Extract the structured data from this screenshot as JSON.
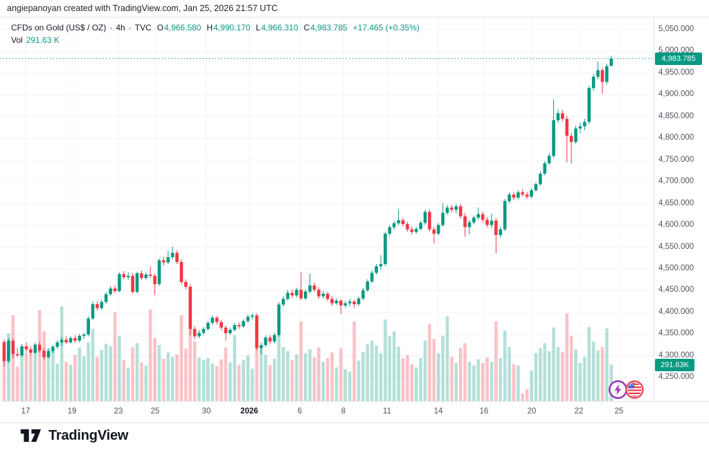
{
  "attribution": "angiepanoyan created with TradingView.com, Jan 25, 2026 21:57 UTC",
  "legend": {
    "symbol": "CFDs on Gold (US$ / OZ)",
    "separator": "·",
    "interval": "4h",
    "exchange": "TVC",
    "o_label": "O",
    "h_label": "H",
    "l_label": "L",
    "c_label": "C",
    "ohlc": {
      "o": "4,966.580",
      "h": "4,990.170",
      "l": "4,966.310",
      "c": "4,983.785"
    },
    "change": "+17.465 (+0.35%)",
    "vol_label": "Vol",
    "vol_value": "291.63 K"
  },
  "price_axis": {
    "labels": [
      "5,050.000",
      "5,000.000",
      "4,950.000",
      "4,900.000",
      "4,850.000",
      "4,800.000",
      "4,750.000",
      "4,700.000",
      "4,650.000",
      "4,600.000",
      "4,550.000",
      "4,500.000",
      "4,450.000",
      "4,400.000",
      "4,350.000",
      "4,300.000",
      "4,250.000"
    ],
    "prices": [
      5050,
      5000,
      4950,
      4900,
      4850,
      4800,
      4750,
      4700,
      4650,
      4600,
      4550,
      4500,
      4450,
      4400,
      4350,
      4300,
      4250
    ],
    "current_price_label": "4,983.785",
    "volume_badge_label": "291.63K"
  },
  "time_axis": {
    "ticks": [
      {
        "label": "17",
        "x": 37,
        "bold": false
      },
      {
        "label": "19",
        "x": 104,
        "bold": false
      },
      {
        "label": "23",
        "x": 171,
        "bold": false
      },
      {
        "label": "25",
        "x": 224,
        "bold": false
      },
      {
        "label": "30",
        "x": 298,
        "bold": false
      },
      {
        "label": "2026",
        "x": 360,
        "bold": true
      },
      {
        "label": "6",
        "x": 433,
        "bold": false
      },
      {
        "label": "8",
        "x": 496,
        "bold": false
      },
      {
        "label": "11",
        "x": 559,
        "bold": false
      },
      {
        "label": "14",
        "x": 633,
        "bold": false
      },
      {
        "label": "16",
        "x": 699,
        "bold": false
      },
      {
        "label": "20",
        "x": 768,
        "bold": false
      },
      {
        "label": "22",
        "x": 836,
        "bold": false
      },
      {
        "label": "25",
        "x": 894,
        "bold": false
      }
    ]
  },
  "icons": {
    "lightning": "flash-boost",
    "flag": "us-market-flag"
  },
  "footer": {
    "brand": "TradingView"
  },
  "colors": {
    "up": "#089981",
    "down": "#f23645",
    "vol_up": "rgba(8,153,129,0.30)",
    "vol_down": "rgba(242,54,69,0.30)",
    "grid": "#f0f3fa",
    "frame": "#e0e3eb",
    "axis_text": "#50535e",
    "dark_text": "#131722",
    "accent": "#089981",
    "icon_purple": "#9a36bc",
    "icon_red": "#f0475a",
    "flag_blue": "#3f51b5"
  },
  "chart_data": {
    "type": "candlestick+volume",
    "title": "CFDs on Gold (US$ / OZ) · 4h · TVC",
    "interval": "4h",
    "exchange": "TVC",
    "last_ohlc": {
      "open": 4966.58,
      "high": 4990.17,
      "low": 4966.31,
      "close": 4983.785,
      "change": 17.465,
      "change_pct": 0.35
    },
    "last_volume_k": 291.63,
    "ylim": [
      4200,
      5075
    ],
    "grid_step": 50,
    "grid_range": [
      4250,
      5050
    ],
    "legend_position": "top-left",
    "volume_unit": "K",
    "time_span_labels": [
      "17",
      "19",
      "23",
      "25",
      "30",
      "2026",
      "6",
      "8",
      "11",
      "14",
      "16",
      "20",
      "22",
      "25"
    ],
    "candles": [
      [
        4332,
        4338,
        4276,
        4288,
        390
      ],
      [
        4288,
        4341,
        4283,
        4335,
        545
      ],
      [
        4335,
        4340,
        4294,
        4304,
        690
      ],
      [
        4304,
        4318,
        4297,
        4301,
        275
      ],
      [
        4301,
        4327,
        4298,
        4322,
        435
      ],
      [
        4322,
        4331,
        4309,
        4315,
        390
      ],
      [
        4315,
        4322,
        4301,
        4307,
        375
      ],
      [
        4307,
        4331,
        4305,
        4326,
        395
      ],
      [
        4326,
        4333,
        4307,
        4312,
        730
      ],
      [
        4312,
        4318,
        4291,
        4297,
        560
      ],
      [
        4297,
        4316,
        4294,
        4311,
        425
      ],
      [
        4311,
        4325,
        4306,
        4321,
        430
      ],
      [
        4321,
        4336,
        4316,
        4331,
        300
      ],
      [
        4331,
        4343,
        4323,
        4337,
        760
      ],
      [
        4337,
        4345,
        4327,
        4331,
        315
      ],
      [
        4331,
        4346,
        4328,
        4341,
        290
      ],
      [
        4341,
        4348,
        4330,
        4335,
        370
      ],
      [
        4335,
        4351,
        4331,
        4346,
        430
      ],
      [
        4346,
        4353,
        4339,
        4349,
        360
      ],
      [
        4349,
        4391,
        4345,
        4386,
        470
      ],
      [
        4386,
        4425,
        4382,
        4419,
        580
      ],
      [
        4419,
        4426,
        4404,
        4410,
        355
      ],
      [
        4410,
        4429,
        4406,
        4424,
        410
      ],
      [
        4424,
        4447,
        4420,
        4442,
        460
      ],
      [
        4442,
        4460,
        4438,
        4455,
        440
      ],
      [
        4455,
        4462,
        4444,
        4449,
        715
      ],
      [
        4449,
        4492,
        4446,
        4488,
        520
      ],
      [
        4488,
        4495,
        4476,
        4481,
        330
      ],
      [
        4481,
        4492,
        4475,
        4484,
        270
      ],
      [
        4484,
        4490,
        4443,
        4447,
        430
      ],
      [
        4447,
        4494,
        4444,
        4490,
        465
      ],
      [
        4490,
        4496,
        4474,
        4479,
        310
      ],
      [
        4479,
        4492,
        4475,
        4487,
        285
      ],
      [
        4487,
        4506,
        4479,
        4484,
        735
      ],
      [
        4484,
        4489,
        4440,
        4465,
        505
      ],
      [
        4465,
        4524,
        4461,
        4520,
        450
      ],
      [
        4520,
        4528,
        4508,
        4515,
        340
      ],
      [
        4515,
        4541,
        4511,
        4527,
        390
      ],
      [
        4527,
        4551,
        4522,
        4537,
        355
      ],
      [
        4537,
        4543,
        4511,
        4516,
        375
      ],
      [
        4516,
        4522,
        4464,
        4470,
        690
      ],
      [
        4470,
        4476,
        4453,
        4459,
        420
      ],
      [
        4459,
        4464,
        4347,
        4362,
        655
      ],
      [
        4362,
        4368,
        4338,
        4345,
        480
      ],
      [
        4345,
        4359,
        4341,
        4353,
        350
      ],
      [
        4353,
        4367,
        4349,
        4362,
        330
      ],
      [
        4362,
        4381,
        4358,
        4376,
        345
      ],
      [
        4376,
        4393,
        4371,
        4388,
        300
      ],
      [
        4388,
        4392,
        4372,
        4378,
        280
      ],
      [
        4378,
        4383,
        4359,
        4365,
        335
      ],
      [
        4365,
        4370,
        4335,
        4352,
        430
      ],
      [
        4352,
        4365,
        4348,
        4360,
        310
      ],
      [
        4360,
        4376,
        4356,
        4371,
        530
      ],
      [
        4371,
        4377,
        4362,
        4368,
        290
      ],
      [
        4368,
        4385,
        4364,
        4380,
        330
      ],
      [
        4380,
        4395,
        4376,
        4390,
        365
      ],
      [
        4390,
        4397,
        4384,
        4393,
        260
      ],
      [
        4393,
        4398,
        4313,
        4318,
        560
      ],
      [
        4318,
        4331,
        4304,
        4325,
        430
      ],
      [
        4325,
        4347,
        4321,
        4342,
        370
      ],
      [
        4342,
        4348,
        4327,
        4333,
        290
      ],
      [
        4333,
        4353,
        4329,
        4348,
        340
      ],
      [
        4348,
        4424,
        4344,
        4418,
        590
      ],
      [
        4418,
        4437,
        4413,
        4431,
        435
      ],
      [
        4431,
        4451,
        4427,
        4445,
        400
      ],
      [
        4445,
        4452,
        4433,
        4439,
        330
      ],
      [
        4439,
        4457,
        4435,
        4452,
        375
      ],
      [
        4452,
        4492,
        4428,
        4432,
        640
      ],
      [
        4432,
        4453,
        4429,
        4448,
        385
      ],
      [
        4448,
        4489,
        4444,
        4462,
        415
      ],
      [
        4462,
        4469,
        4447,
        4452,
        350
      ],
      [
        4452,
        4458,
        4431,
        4437,
        430
      ],
      [
        4437,
        4449,
        4432,
        4443,
        315
      ],
      [
        4443,
        4447,
        4426,
        4431,
        345
      ],
      [
        4431,
        4438,
        4415,
        4421,
        390
      ],
      [
        4421,
        4433,
        4417,
        4427,
        270
      ],
      [
        4427,
        4431,
        4396,
        4416,
        425
      ],
      [
        4416,
        4427,
        4411,
        4421,
        255
      ],
      [
        4421,
        4431,
        4414,
        4425,
        235
      ],
      [
        4425,
        4429,
        4411,
        4419,
        640
      ],
      [
        4419,
        4437,
        4415,
        4432,
        325
      ],
      [
        4432,
        4456,
        4428,
        4451,
        395
      ],
      [
        4451,
        4476,
        4447,
        4471,
        460
      ],
      [
        4471,
        4496,
        4467,
        4491,
        485
      ],
      [
        4491,
        4511,
        4487,
        4506,
        445
      ],
      [
        4506,
        4532,
        4498,
        4511,
        385
      ],
      [
        4511,
        4585,
        4507,
        4581,
        655
      ],
      [
        4581,
        4601,
        4576,
        4596,
        525
      ],
      [
        4596,
        4610,
        4590,
        4605,
        560
      ],
      [
        4605,
        4636,
        4600,
        4612,
        435
      ],
      [
        4612,
        4618,
        4598,
        4603,
        345
      ],
      [
        4603,
        4608,
        4585,
        4591,
        370
      ],
      [
        4591,
        4598,
        4579,
        4585,
        295
      ],
      [
        4585,
        4597,
        4581,
        4592,
        270
      ],
      [
        4592,
        4611,
        4588,
        4606,
        345
      ],
      [
        4606,
        4636,
        4601,
        4631,
        485
      ],
      [
        4631,
        4637,
        4586,
        4591,
        620
      ],
      [
        4591,
        4597,
        4559,
        4581,
        500
      ],
      [
        4581,
        4606,
        4577,
        4601,
        385
      ],
      [
        4601,
        4651,
        4597,
        4629,
        525
      ],
      [
        4629,
        4647,
        4624,
        4641,
        680
      ],
      [
        4641,
        4647,
        4630,
        4636,
        355
      ],
      [
        4636,
        4649,
        4628,
        4644,
        305
      ],
      [
        4644,
        4650,
        4615,
        4621,
        425
      ],
      [
        4621,
        4629,
        4574,
        4596,
        465
      ],
      [
        4596,
        4613,
        4580,
        4607,
        315
      ],
      [
        4607,
        4623,
        4602,
        4618,
        285
      ],
      [
        4618,
        4641,
        4613,
        4626,
        335
      ],
      [
        4626,
        4632,
        4607,
        4613,
        305
      ],
      [
        4613,
        4619,
        4595,
        4601,
        350
      ],
      [
        4601,
        4627,
        4594,
        4611,
        315
      ],
      [
        4611,
        4617,
        4536,
        4578,
        640
      ],
      [
        4578,
        4597,
        4572,
        4591,
        345
      ],
      [
        4591,
        4661,
        4587,
        4656,
        565
      ],
      [
        4656,
        4676,
        4651,
        4671,
        435
      ],
      [
        4671,
        4677,
        4658,
        4664,
        295
      ],
      [
        4664,
        4681,
        4660,
        4676,
        285
      ],
      [
        4676,
        4684,
        4667,
        4671,
        60
      ],
      [
        4671,
        4677,
        4661,
        4666,
        95
      ],
      [
        4666,
        4686,
        4662,
        4681,
        245
      ],
      [
        4681,
        4699,
        4677,
        4695,
        385
      ],
      [
        4695,
        4724,
        4691,
        4719,
        425
      ],
      [
        4719,
        4748,
        4715,
        4743,
        465
      ],
      [
        4743,
        4766,
        4739,
        4760,
        400
      ],
      [
        4760,
        4890,
        4755,
        4842,
        590
      ],
      [
        4842,
        4867,
        4836,
        4858,
        435
      ],
      [
        4858,
        4865,
        4839,
        4845,
        395
      ],
      [
        4845,
        4852,
        4745,
        4806,
        705
      ],
      [
        4806,
        4813,
        4742,
        4792,
        525
      ],
      [
        4792,
        4829,
        4787,
        4823,
        415
      ],
      [
        4823,
        4836,
        4812,
        4828,
        305
      ],
      [
        4828,
        4845,
        4819,
        4838,
        355
      ],
      [
        4838,
        4921,
        4833,
        4916,
        595
      ],
      [
        4916,
        4948,
        4910,
        4942,
        480
      ],
      [
        4942,
        4976,
        4936,
        4957,
        405
      ],
      [
        4957,
        4963,
        4903,
        4930,
        435
      ],
      [
        4930,
        4972,
        4924,
        4966,
        585
      ],
      [
        4966.58,
        4990.17,
        4966.31,
        4983.785,
        291.63
      ]
    ]
  }
}
